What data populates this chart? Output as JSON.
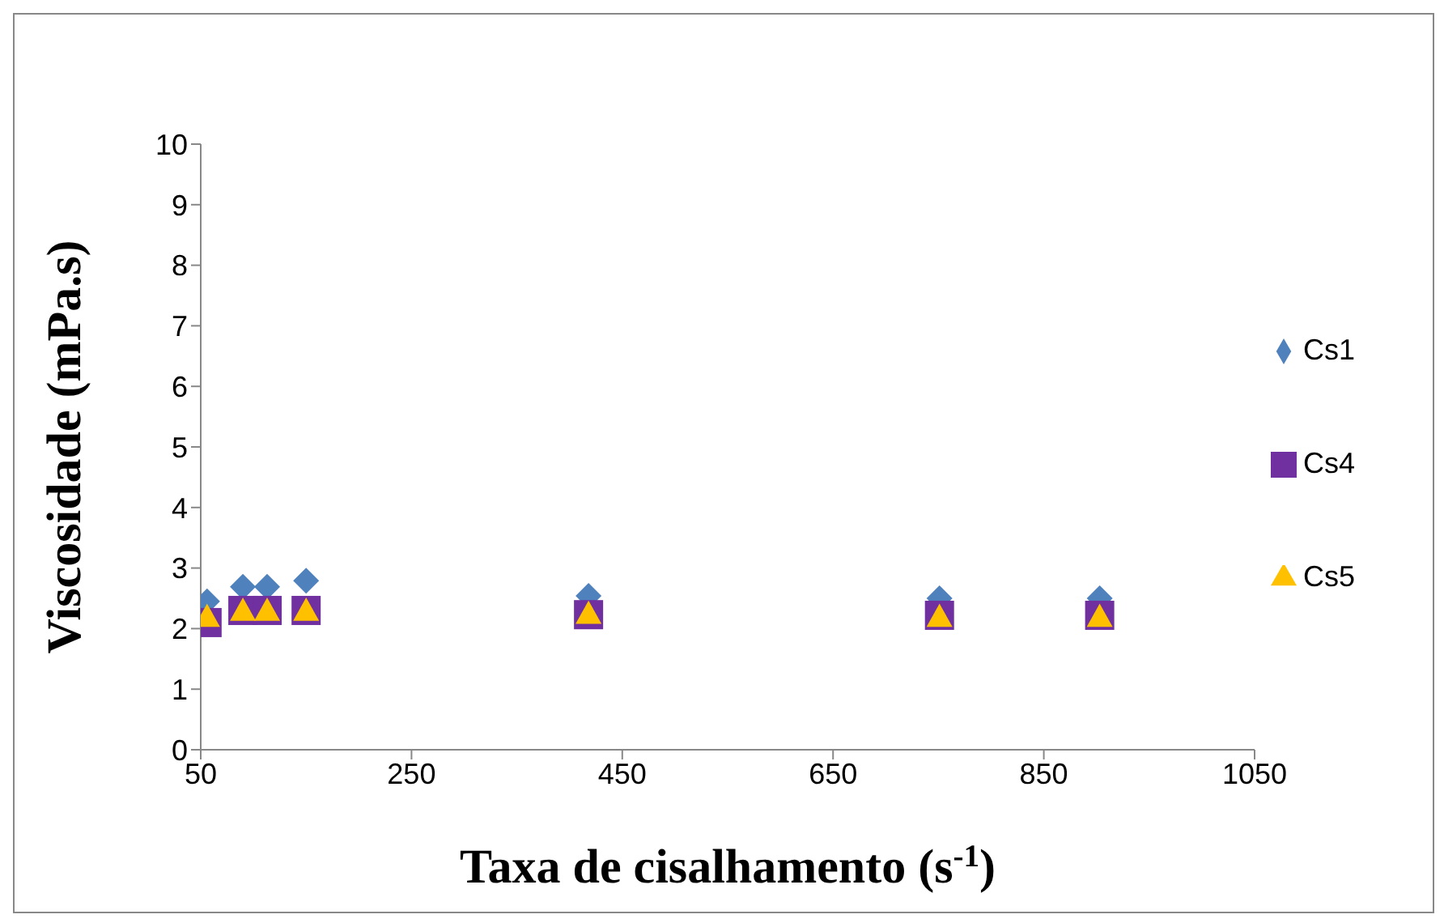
{
  "chart_data": {
    "type": "scatter",
    "xlabel": "Taxa de cisalhamento (s$^{-1}$)",
    "ylabel": "Viscosidade (mPa.s)",
    "x": [
      56,
      90,
      113,
      150,
      418,
      751,
      903
    ],
    "series": [
      {
        "name": "Cs1",
        "color": "#4f81bd",
        "marker": "diamond",
        "values": [
          2.45,
          2.69,
          2.69,
          2.79,
          2.54,
          2.5,
          2.5
        ]
      },
      {
        "name": "Cs4",
        "color": "#7030a0",
        "marker": "square",
        "values": [
          2.1,
          2.3,
          2.3,
          2.3,
          2.23,
          2.22,
          2.22
        ]
      },
      {
        "name": "Cs5",
        "color": "#ffc000",
        "marker": "triangle",
        "values": [
          2.2,
          2.3,
          2.3,
          2.3,
          2.25,
          2.2,
          2.2
        ]
      }
    ],
    "xlim": [
      50,
      1050
    ],
    "xticks": [
      50,
      250,
      450,
      650,
      850,
      1050
    ],
    "ylim": [
      0,
      10
    ],
    "yticks": [
      0,
      1,
      2,
      3,
      4,
      5,
      6,
      7,
      8,
      9,
      10
    ],
    "grid": false,
    "legend": "right"
  }
}
